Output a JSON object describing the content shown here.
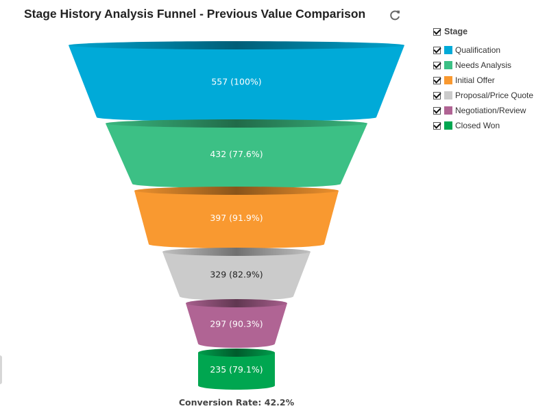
{
  "title": "Stage History Analysis Funnel - Previous Value Comparison",
  "legend": {
    "header": "Stage",
    "items": [
      {
        "label": "Qualification",
        "color": "#00aad8"
      },
      {
        "label": "Needs Analysis",
        "color": "#3cc085"
      },
      {
        "label": "Initial Offer",
        "color": "#f99930"
      },
      {
        "label": "Proposal/Price Quote",
        "color": "#cbcbcb"
      },
      {
        "label": "Negotiation/Review",
        "color": "#b06494"
      },
      {
        "label": "Closed Won",
        "color": "#00a650"
      }
    ]
  },
  "chart_data": {
    "type": "funnel",
    "title": "Stage History Analysis Funnel - Previous Value Comparison",
    "categories": [
      "Qualification",
      "Needs Analysis",
      "Initial Offer",
      "Proposal/Price Quote",
      "Negotiation/Review",
      "Closed Won"
    ],
    "values": [
      557,
      432,
      397,
      329,
      297,
      235
    ],
    "labels": [
      "557 (100%)",
      "432 (77.6%)",
      "397 (91.9%)",
      "329 (82.9%)",
      "297 (90.3%)",
      "235 (79.1%)"
    ],
    "colors": [
      "#00aad8",
      "#3cc085",
      "#f99930",
      "#cbcbcb",
      "#b06494",
      "#00a650"
    ],
    "label_colors": [
      "#ffffff",
      "#ffffff",
      "#ffffff",
      "#222222",
      "#ffffff",
      "#ffffff"
    ],
    "legend_placement": "right",
    "footer": "Conversion Rate: 42.2%"
  }
}
